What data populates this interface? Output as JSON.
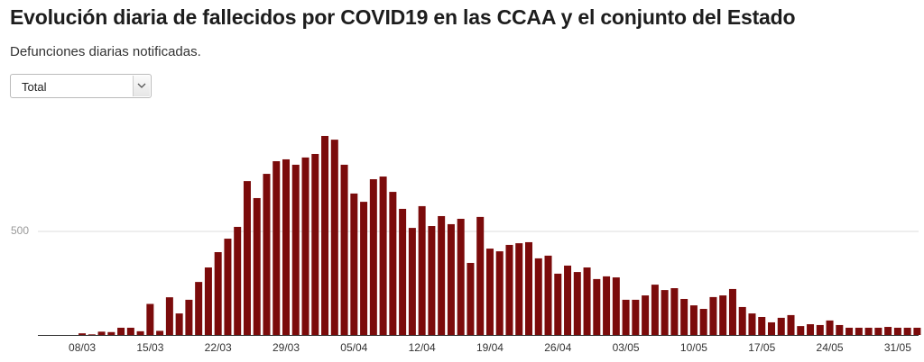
{
  "chart_data": {
    "type": "bar",
    "title": "Evolución diaria de fallecidos por COVID19 en las CCAA y el conjunto del Estado",
    "subtitle": "Defunciones diarias notificadas.",
    "select": {
      "value": "Total"
    },
    "categories": [
      null,
      null,
      null,
      null,
      "08/03",
      null,
      null,
      null,
      null,
      null,
      null,
      "15/03",
      null,
      null,
      null,
      null,
      null,
      null,
      "22/03",
      null,
      null,
      null,
      null,
      null,
      null,
      "29/03",
      null,
      null,
      null,
      null,
      null,
      null,
      "05/04",
      null,
      null,
      null,
      null,
      null,
      null,
      "12/04",
      null,
      null,
      null,
      null,
      null,
      null,
      "19/04",
      null,
      null,
      null,
      null,
      null,
      null,
      "26/04",
      null,
      null,
      null,
      null,
      null,
      null,
      "03/05",
      null,
      null,
      null,
      null,
      null,
      null,
      "10/05",
      null,
      null,
      null,
      null,
      null,
      null,
      "17/05",
      null,
      null,
      null,
      null,
      null,
      null,
      "24/05",
      null,
      null,
      null,
      null,
      null,
      null,
      "31/05",
      null,
      null
    ],
    "values": [
      0,
      0,
      0,
      0,
      8,
      3,
      16,
      14,
      35,
      35,
      18,
      150,
      20,
      182,
      104,
      170,
      256,
      326,
      400,
      465,
      522,
      743,
      661,
      778,
      839,
      848,
      822,
      857,
      874,
      961,
      943,
      822,
      683,
      643,
      752,
      765,
      691,
      609,
      517,
      622,
      526,
      574,
      535,
      561,
      348,
      570,
      417,
      404,
      435,
      443,
      448,
      370,
      383,
      296,
      335,
      304,
      326,
      270,
      283,
      278,
      170,
      170,
      191,
      243,
      217,
      226,
      174,
      143,
      126,
      183,
      191,
      222,
      135,
      104,
      87,
      61,
      83,
      96,
      43,
      52,
      48,
      70,
      48,
      35,
      35,
      35,
      35,
      39,
      35,
      35,
      35
    ],
    "color": "#7b0b0b",
    "ylim": [
      0,
      1000
    ],
    "yticks": [
      500
    ],
    "grid": true
  }
}
